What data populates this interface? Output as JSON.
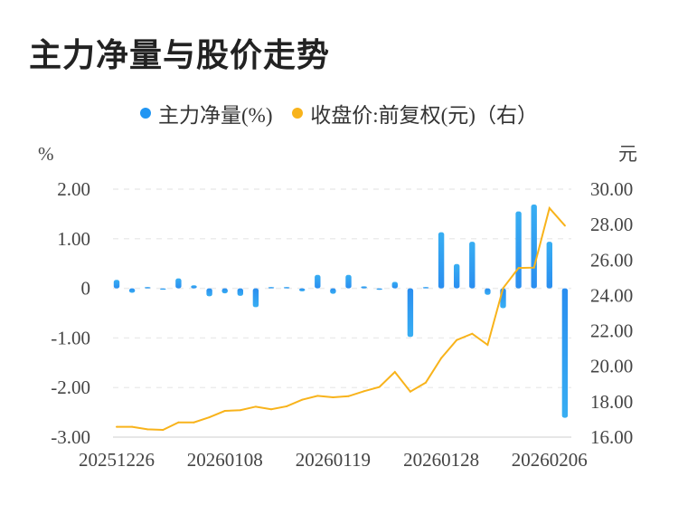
{
  "title": "主力净量与股价走势",
  "colors": {
    "bar": "#2a8ef0",
    "bar_light": "#38aef2",
    "line": "#f8b31b",
    "grid": "#e6e6e6"
  },
  "chart_data": {
    "type": "bar+line",
    "legend": [
      {
        "name": "主力净量(%)",
        "color": "#2196f3"
      },
      {
        "name": "收盘价:前复权(元)（右）",
        "color": "#f8b31b"
      }
    ],
    "legend_position": "top",
    "left_axis": {
      "unit": "%",
      "ylim": [
        -3,
        2
      ],
      "ticks": [
        2,
        1,
        0,
        -1,
        -2,
        -3
      ],
      "tick_labels": [
        "2.00",
        "1.00",
        "0",
        "-1.00",
        "-2.00",
        "-3.00"
      ]
    },
    "right_axis": {
      "unit": "元",
      "ylim": [
        16,
        30
      ],
      "ticks": [
        30,
        28,
        26,
        24,
        22,
        20,
        18,
        16
      ],
      "tick_labels": [
        "30.00",
        "28.00",
        "26.00",
        "24.00",
        "22.00",
        "20.00",
        "18.00",
        "16.00"
      ]
    },
    "grid": true,
    "x": [
      "20251226",
      "20251229",
      "20251230",
      "20251231",
      "20260105",
      "20260106",
      "20260107",
      "20260108",
      "20260109",
      "20260112",
      "20260113",
      "20260114",
      "20260115",
      "20260116",
      "20260119",
      "20260120",
      "20260121",
      "20260122",
      "20260123",
      "20260126",
      "20260127",
      "20260128",
      "20260129",
      "20260130",
      "20260202",
      "20260203",
      "20260204",
      "20260205",
      "20260206",
      "20260209"
    ],
    "x_tick_labels": [
      "20251226",
      "20260108",
      "20260119",
      "20260128",
      "20260206"
    ],
    "series": [
      {
        "name": "主力净量(%)",
        "type": "bar",
        "axis": "left",
        "values": [
          0.17,
          -0.09,
          0.02,
          -0.02,
          0.2,
          0.06,
          -0.16,
          -0.1,
          -0.15,
          -0.38,
          0.01,
          0.02,
          -0.06,
          0.27,
          -0.11,
          0.27,
          0.04,
          -0.03,
          0.13,
          -0.98,
          0.01,
          1.13,
          0.49,
          0.94,
          -0.13,
          -0.4,
          1.55,
          1.69,
          0.94,
          -2.61
        ]
      },
      {
        "name": "收盘价:前复权(元)（右）",
        "type": "line",
        "axis": "right",
        "values": [
          16.58,
          16.58,
          16.44,
          16.41,
          16.83,
          16.83,
          17.12,
          17.48,
          17.52,
          17.72,
          17.57,
          17.74,
          18.11,
          18.33,
          18.25,
          18.31,
          18.59,
          18.83,
          19.68,
          18.57,
          19.08,
          20.46,
          21.48,
          21.84,
          21.21,
          24.41,
          25.55,
          25.57,
          28.93,
          27.94
        ]
      }
    ]
  }
}
